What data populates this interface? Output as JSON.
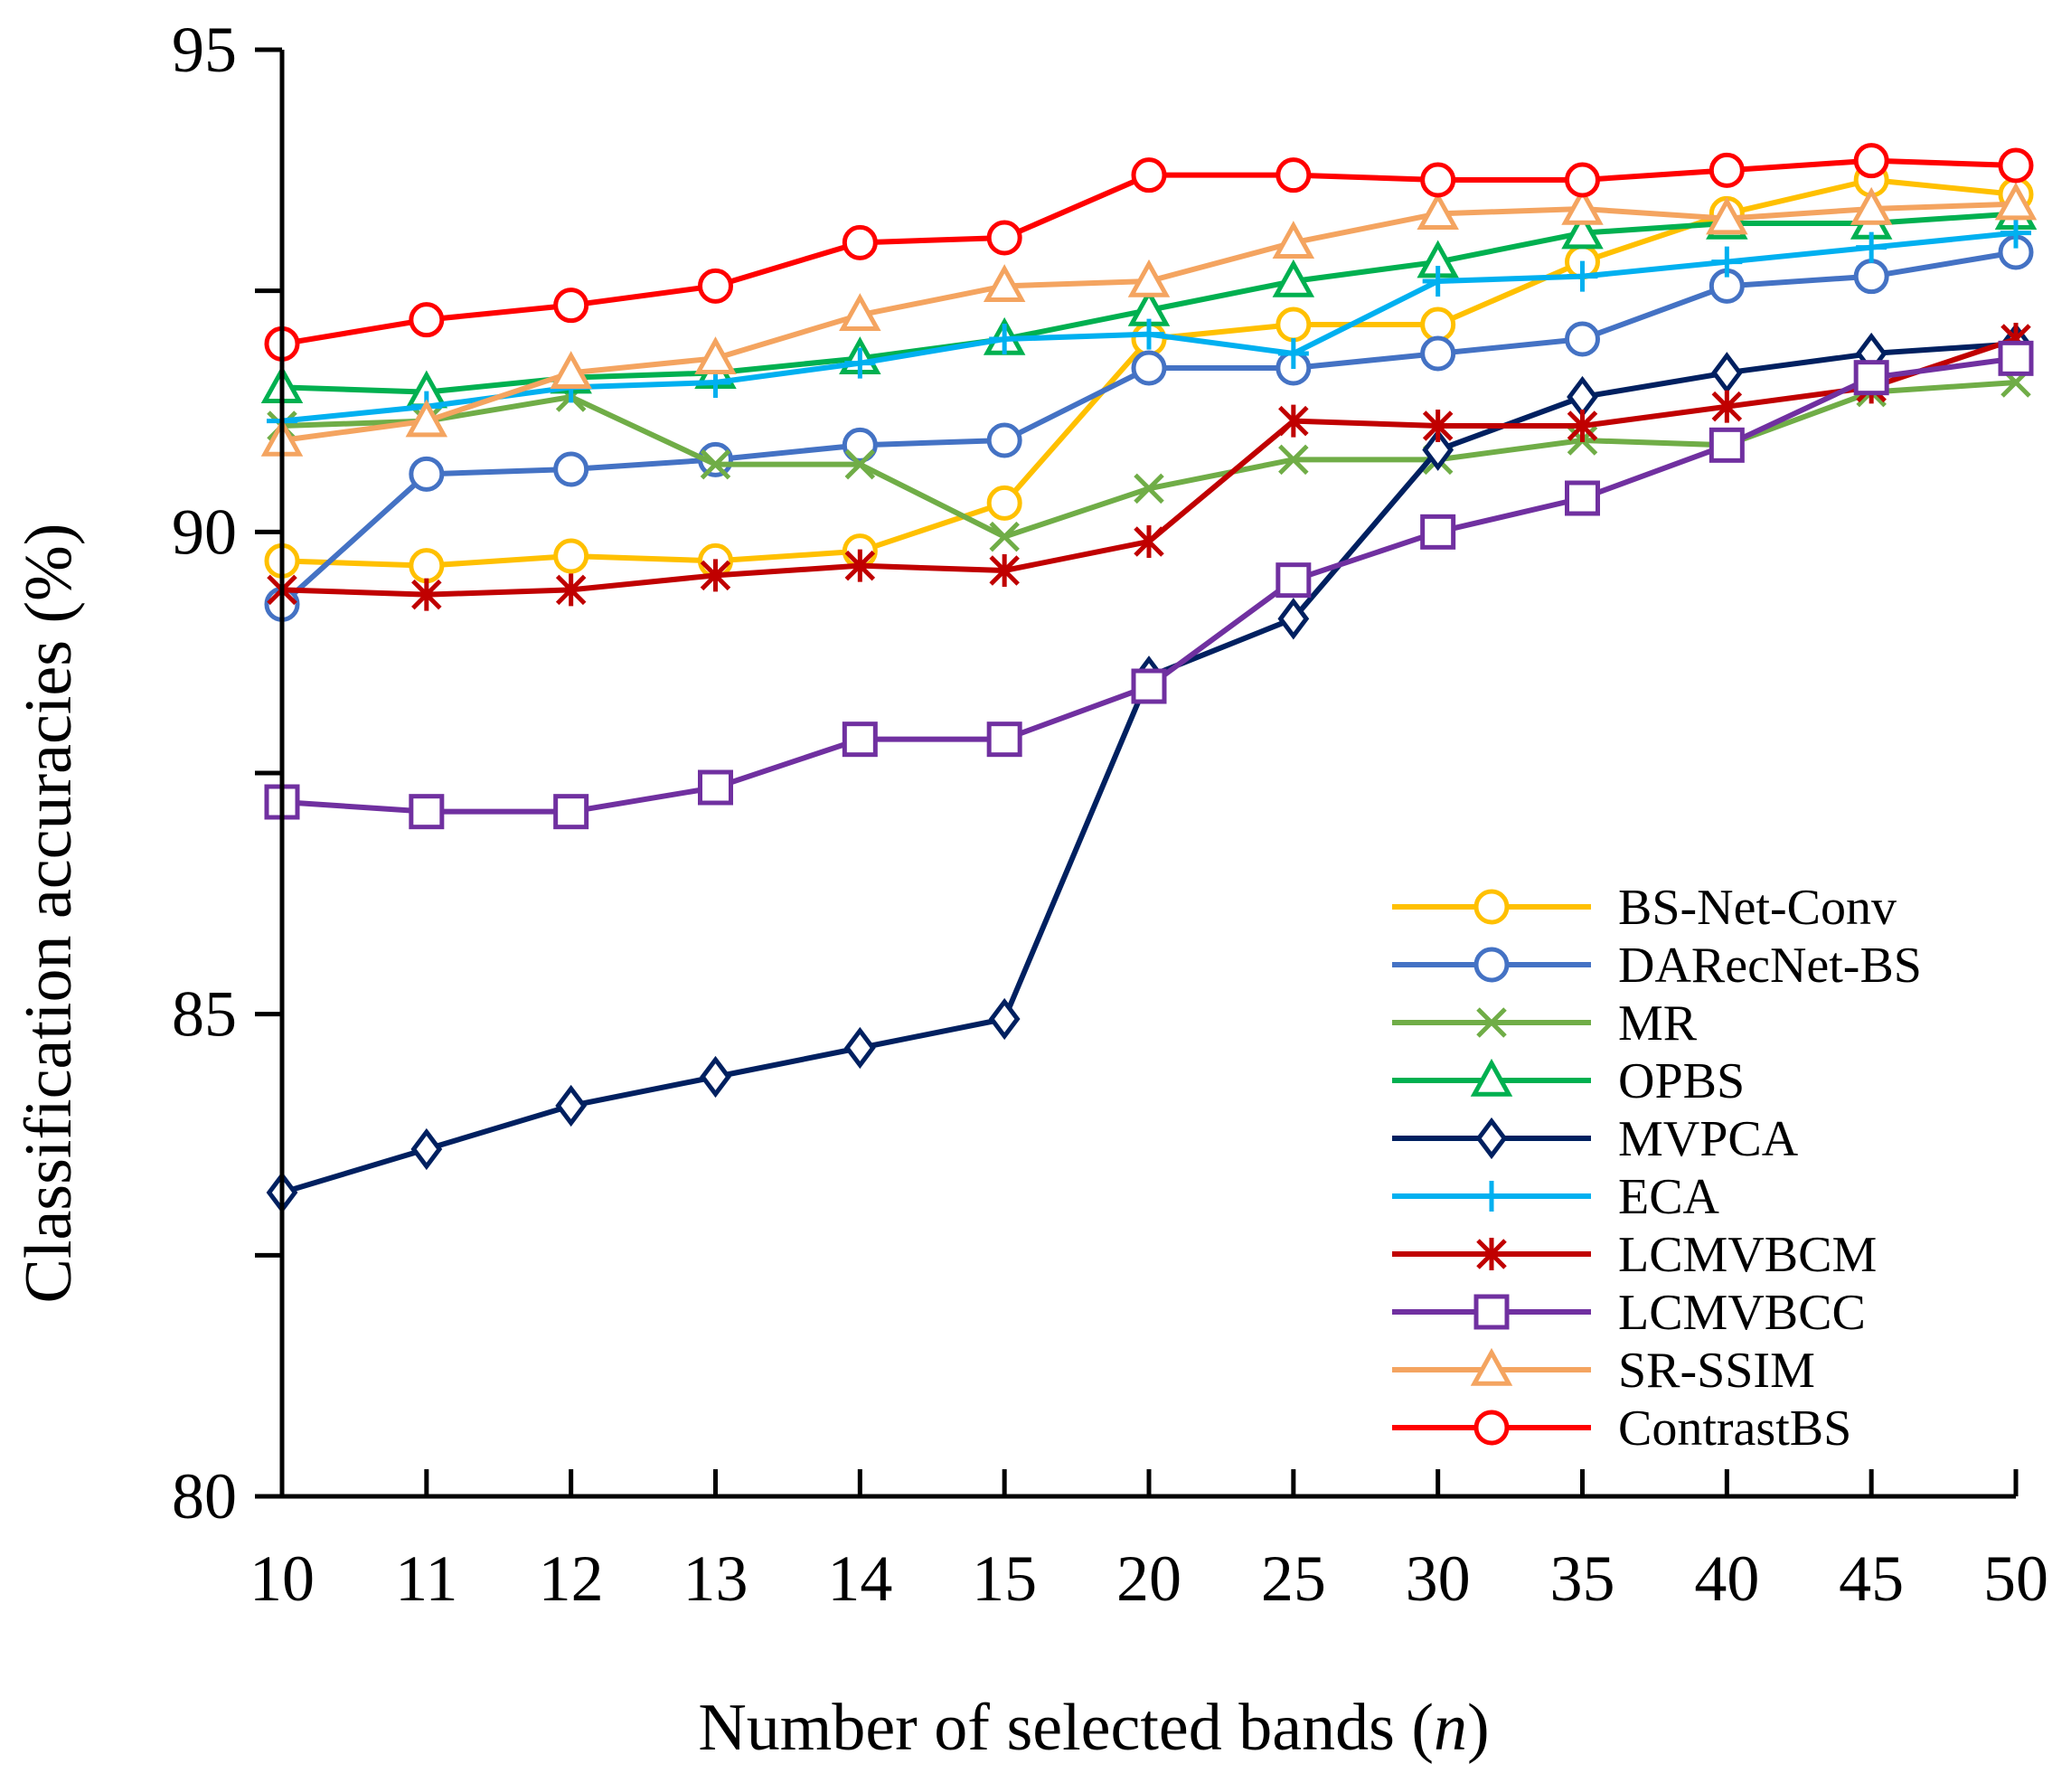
{
  "chart_data": {
    "type": "line",
    "title": "",
    "xlabel": {
      "prefix": "Number of selected bands (",
      "var": "n",
      "suffix": ")"
    },
    "ylabel": "Classification accuracies (%)",
    "categories": [
      "10",
      "11",
      "12",
      "13",
      "14",
      "15",
      "20",
      "25",
      "30",
      "35",
      "40",
      "45",
      "50"
    ],
    "ylim": [
      80,
      95
    ],
    "yticks": [
      80,
      85,
      90,
      95
    ],
    "yticks_label": [
      "80",
      "85",
      "90",
      "95"
    ],
    "y_minor_ticks": [
      82.5,
      87.5,
      92.5
    ],
    "grid": false,
    "legend_position": "bottom-right",
    "series": [
      {
        "name": "BS-Net-Conv",
        "color": "#FFC000",
        "marker": "circle",
        "values": [
          89.7,
          89.65,
          89.75,
          89.7,
          89.8,
          90.3,
          92.0,
          92.15,
          92.15,
          92.8,
          93.3,
          93.65,
          93.5
        ]
      },
      {
        "name": "DARecNet-BS",
        "color": "#4472C4",
        "marker": "circle",
        "values": [
          89.25,
          90.6,
          90.65,
          90.75,
          90.9,
          90.95,
          91.7,
          91.7,
          91.85,
          92.0,
          92.55,
          92.65,
          92.9
        ]
      },
      {
        "name": "MR",
        "color": "#70AD47",
        "marker": "x",
        "values": [
          91.1,
          91.15,
          91.4,
          90.7,
          90.7,
          89.95,
          90.45,
          90.75,
          90.75,
          90.95,
          90.9,
          91.45,
          91.55
        ]
      },
      {
        "name": "OPBS",
        "color": "#00B050",
        "marker": "triangle",
        "values": [
          91.5,
          91.45,
          91.6,
          91.65,
          91.8,
          92.0,
          92.3,
          92.6,
          92.8,
          93.1,
          93.2,
          93.2,
          93.3
        ]
      },
      {
        "name": "MVPCA",
        "color": "#002060",
        "marker": "diamond",
        "values": [
          83.15,
          83.6,
          84.05,
          84.35,
          84.65,
          84.95,
          88.5,
          89.1,
          90.85,
          91.4,
          91.65,
          91.85,
          91.95
        ]
      },
      {
        "name": "ECA",
        "color": "#00B0F0",
        "marker": "plus",
        "values": [
          91.15,
          91.3,
          91.5,
          91.55,
          91.75,
          92.0,
          92.05,
          91.85,
          92.6,
          92.65,
          92.8,
          92.95,
          93.1
        ]
      },
      {
        "name": "LCMVBCM",
        "color": "#C00000",
        "marker": "star",
        "values": [
          89.4,
          89.35,
          89.4,
          89.55,
          89.65,
          89.6,
          89.9,
          91.15,
          91.1,
          91.1,
          91.3,
          91.5,
          92.0
        ]
      },
      {
        "name": "LCMVBCC",
        "color": "#7030A0",
        "marker": "square",
        "values": [
          87.2,
          87.1,
          87.1,
          87.35,
          87.85,
          87.85,
          88.4,
          89.5,
          90.0,
          90.35,
          90.9,
          91.6,
          91.8
        ]
      },
      {
        "name": "SR-SSIM",
        "color": "#F4A460",
        "marker": "triangle",
        "values": [
          90.95,
          91.15,
          91.65,
          91.8,
          92.25,
          92.55,
          92.6,
          93.0,
          93.3,
          93.35,
          93.25,
          93.35,
          93.4
        ]
      },
      {
        "name": "ContrastBS",
        "color": "#FF0000",
        "marker": "circle",
        "values": [
          91.95,
          92.2,
          92.35,
          92.55,
          93.0,
          93.05,
          93.7,
          93.7,
          93.65,
          93.65,
          93.75,
          93.85,
          93.8
        ]
      }
    ]
  }
}
